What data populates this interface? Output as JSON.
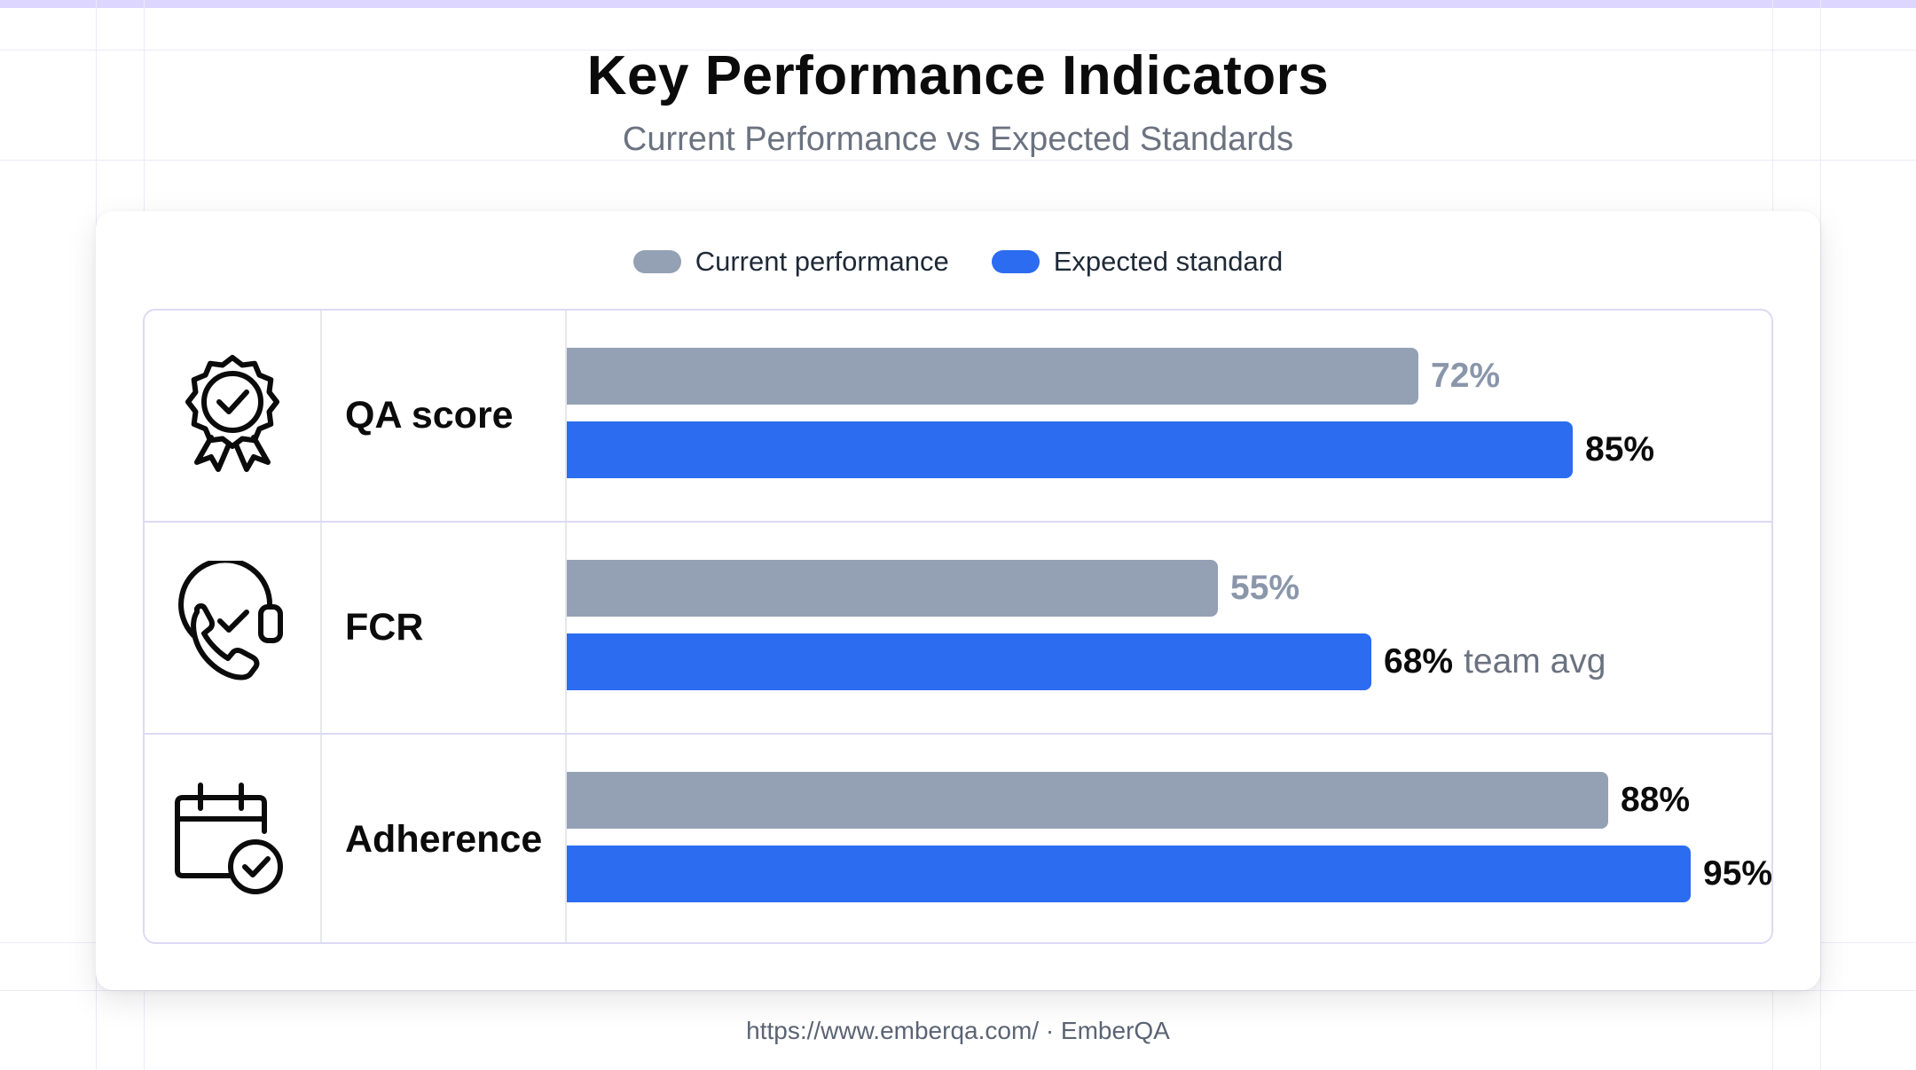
{
  "title": "Key Performance Indicators",
  "subtitle": "Current Performance vs Expected Standards",
  "footer": "https://www.emberqa.com/ · EmberQA",
  "colors": {
    "current": "#94a0b4",
    "expected": "#2b6cf0",
    "accent_top": "#ddd6fe"
  },
  "chart_data": {
    "type": "bar",
    "orientation": "horizontal",
    "title": "Key Performance Indicators",
    "subtitle": "Current Performance vs Expected Standards",
    "xlim": [
      0,
      100
    ],
    "legend_placement": "top-center",
    "categories": [
      "QA score",
      "FCR",
      "Adherence"
    ],
    "icons": [
      "award-rosette-icon",
      "phone-headset-icon",
      "calendar-check-icon"
    ],
    "series": [
      {
        "name": "Current performance",
        "values": [
          72,
          55,
          88
        ],
        "labels": [
          "72%",
          "55%",
          "88%"
        ],
        "notes": [
          "",
          "",
          ""
        ]
      },
      {
        "name": "Expected standard",
        "values": [
          85,
          68,
          95
        ],
        "labels": [
          "85%",
          "68%",
          "95%"
        ],
        "notes": [
          "",
          "team avg",
          ""
        ]
      }
    ]
  }
}
